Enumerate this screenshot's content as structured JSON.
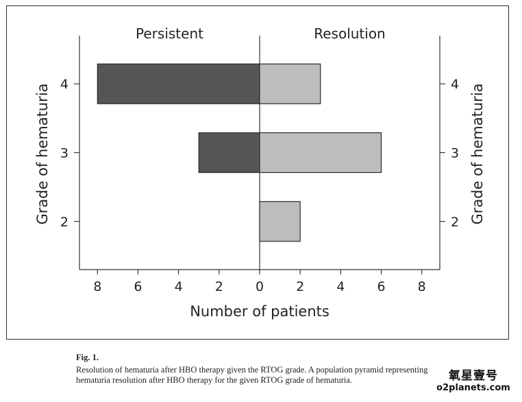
{
  "figure": {
    "caption_title": "Fig. 1.",
    "caption_text": "Resolution of hematuria after HBO therapy given the RTOG grade. A population pyramid representing hematuria resolution after HBO therapy for the given RTOG grade of hematuria."
  },
  "watermark": {
    "name": "氧星壹号",
    "url": "o2planets.com"
  },
  "chart_data": {
    "type": "bar",
    "orientation": "horizontal",
    "layout": "population-pyramid",
    "categories": [
      "4",
      "3",
      "2"
    ],
    "series": [
      {
        "name": "Persistent",
        "side": "left",
        "color": "#555555",
        "values": [
          8,
          3,
          0
        ]
      },
      {
        "name": "Resolution",
        "side": "right",
        "color": "#bdbdbd",
        "values": [
          3,
          6,
          2
        ]
      }
    ],
    "xlabel": "Number of patients",
    "ylabel": "Grade of hematuria",
    "xlim": [
      -8,
      8
    ],
    "xticks": [
      8,
      6,
      4,
      2,
      0,
      2,
      4,
      6,
      8
    ],
    "ylim": [
      1.3,
      4.7
    ],
    "grid": false,
    "legend": "panel titles above each side"
  }
}
